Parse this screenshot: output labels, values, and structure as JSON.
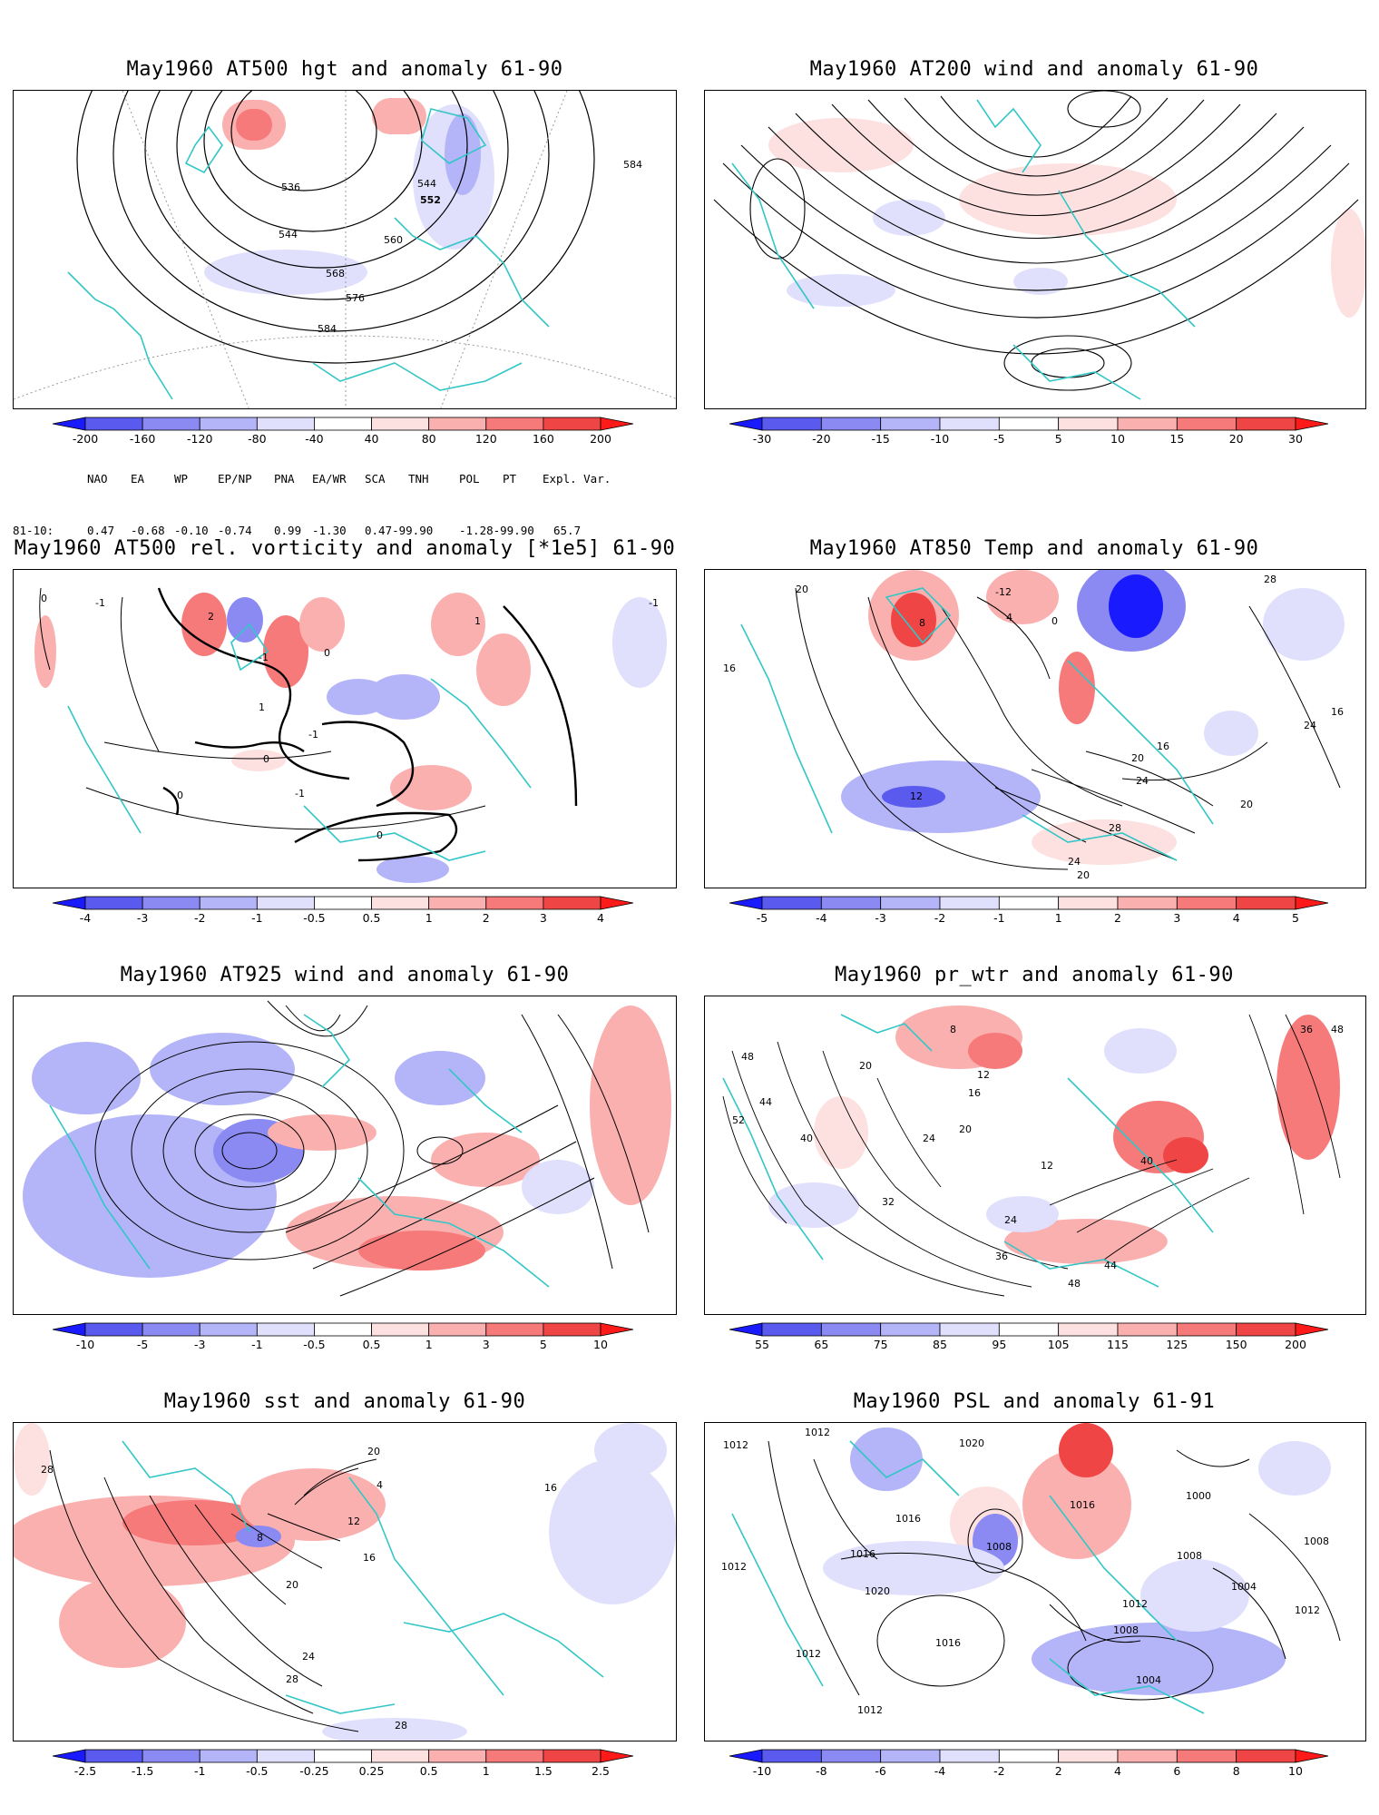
{
  "colors": {
    "coast": "#33c6c6",
    "contour": "#000000",
    "red_scale": [
      "#fde0e0",
      "#fbb0b0",
      "#f67a7a",
      "#f04545",
      "#ff1a1a"
    ],
    "blue_scale": [
      "#e0e0fd",
      "#b4b4f8",
      "#8a8af2",
      "#5a5aee",
      "#1a1aff"
    ],
    "grid": "#9a9a9a"
  },
  "panels": [
    {
      "title": "May1960 AT500 hgt and anomaly 61-90",
      "colorbar": [
        "-200",
        "-160",
        "-120",
        "-80",
        "-40",
        "40",
        "80",
        "120",
        "160",
        "200"
      ],
      "contour_labels": [
        "536",
        "544",
        "552",
        "544",
        "560",
        "568",
        "576",
        "584",
        "584"
      ]
    },
    {
      "title": "May1960 AT200 wind and anomaly 61-90",
      "colorbar": [
        "-30",
        "-20",
        "-15",
        "-10",
        "-5",
        "5",
        "10",
        "15",
        "20",
        "30"
      ],
      "contour_labels": []
    },
    {
      "title": "May1960 AT500 rel. vorticity and anomaly [*1e5] 61-90",
      "colorbar": [
        "-4",
        "-3",
        "-2",
        "-1",
        "-0.5",
        "0.5",
        "1",
        "2",
        "3",
        "4"
      ],
      "contour_labels": [
        "0",
        "-1",
        "2",
        "-1",
        "0",
        "1",
        "-1",
        "0",
        "-1",
        "0",
        "0",
        "1",
        "-1"
      ]
    },
    {
      "title": "May1960 AT850 Temp and anomaly 61-90",
      "colorbar": [
        "-5",
        "-4",
        "-3",
        "-2",
        "-1",
        "1",
        "2",
        "3",
        "4",
        "5"
      ],
      "contour_labels": [
        "20",
        "8",
        "-12",
        "4",
        "0",
        "16",
        "24",
        "16",
        "12",
        "20",
        "24",
        "28",
        "24",
        "20",
        "20",
        "16",
        "28"
      ]
    },
    {
      "title": "May1960 AT925 wind and anomaly 61-90",
      "colorbar": [
        "-10",
        "-5",
        "-3",
        "-1",
        "-0.5",
        "0.5",
        "1",
        "3",
        "5",
        "10"
      ],
      "contour_labels": []
    },
    {
      "title": "May1960 pr_wtr and anomaly 61-90",
      "colorbar": [
        "55",
        "65",
        "75",
        "85",
        "95",
        "105",
        "115",
        "125",
        "150",
        "200"
      ],
      "contour_labels": [
        "48",
        "40",
        "52",
        "44",
        "20",
        "12",
        "8",
        "16",
        "24",
        "32",
        "20",
        "12",
        "40",
        "36",
        "24",
        "48",
        "44",
        "48",
        "36"
      ]
    },
    {
      "title": "May1960 sst and anomaly 61-90",
      "colorbar": [
        "-2.5",
        "-1.5",
        "-1",
        "-0.5",
        "-0.25",
        "0.25",
        "0.5",
        "1",
        "1.5",
        "2.5"
      ],
      "contour_labels": [
        "28",
        "20",
        "12",
        "16",
        "20",
        "24",
        "28",
        "28",
        "16",
        "8",
        "4"
      ]
    },
    {
      "title": "May1960 PSL and anomaly 61-91",
      "colorbar": [
        "-10",
        "-8",
        "-6",
        "-4",
        "-2",
        "2",
        "4",
        "6",
        "8",
        "10"
      ],
      "contour_labels": [
        "1012",
        "1012",
        "1020",
        "1016",
        "1008",
        "1016",
        "1020",
        "1012",
        "1016",
        "1004",
        "1008",
        "1012",
        "1008",
        "1004",
        "1008",
        "1012",
        "1012",
        "1012",
        "1016",
        "1000"
      ]
    }
  ],
  "teleconnections": {
    "headers": [
      "NAO",
      "EA",
      "WP",
      "EP/NP",
      "PNA",
      "EA/WR",
      "SCA",
      "TNH",
      "POL",
      "PT",
      "Expl. Var."
    ],
    "row_label": "81-10:",
    "values": [
      "0.47",
      "-0.68",
      "-0.10",
      "-0.74",
      "0.99",
      "-1.30",
      "0.47-99.90",
      "-1.28-99.90",
      "65.7"
    ]
  }
}
